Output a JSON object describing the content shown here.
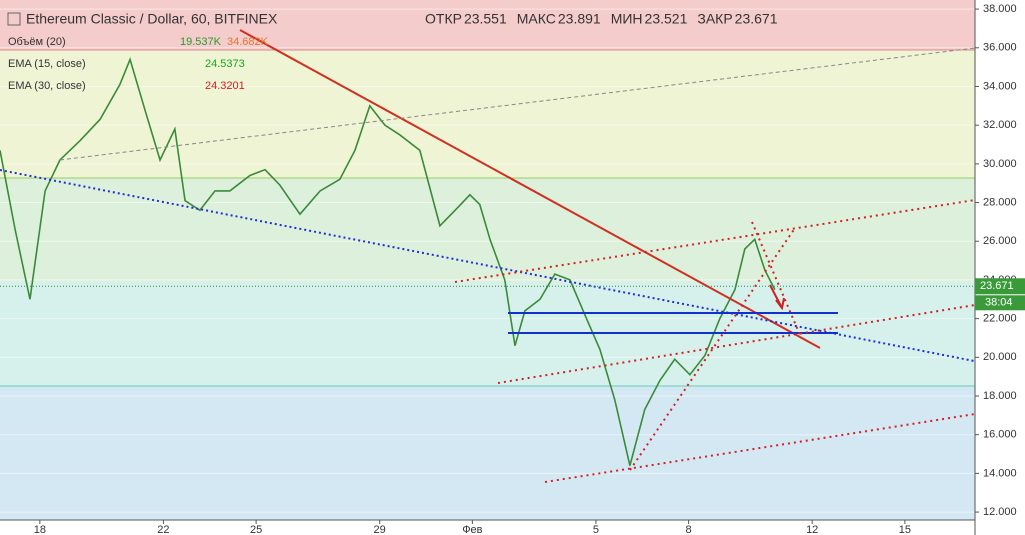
{
  "header": {
    "symbol": "Ethereum Classic / Dollar, 60, BITFINEX",
    "ohlc": [
      {
        "label": "ОТКР",
        "value": 23.551
      },
      {
        "label": "МАКС",
        "value": 23.891
      },
      {
        "label": "МИН",
        "value": 23.521
      },
      {
        "label": "ЗАКР",
        "value": 23.671
      }
    ]
  },
  "indicators": [
    {
      "name": "Объём (20)",
      "values": [
        "19.537K",
        "34.682K"
      ]
    },
    {
      "name": "EMA (15, close)",
      "values": [
        24.5373
      ]
    },
    {
      "name": "EMA (30, close)",
      "values": [
        24.3201
      ]
    }
  ],
  "price_label": {
    "value": 23.671,
    "timer": "38:04"
  },
  "chart_data": {
    "type": "line",
    "x": [
      16.71,
      17.2,
      17.68,
      18.17,
      18.65,
      19.3,
      19.95,
      20.59,
      20.92,
      21.4,
      21.89,
      22.37,
      22.7,
      23.18,
      23.67,
      24.15,
      24.8,
      25.29,
      25.77,
      26.42,
      27.07,
      27.71,
      28.2,
      28.68,
      29.17,
      29.65,
      30.3,
      30.95,
      31.44,
      31.92,
      32.24,
      32.57,
      33.05,
      33.38,
      33.7,
      34.19,
      34.67,
      35.16,
      35.64,
      36.13,
      36.61,
      37.1,
      37.58,
      38.07,
      38.55,
      39.04,
      39.53,
      40.01,
      40.5,
      40.82,
      41.14,
      41.47,
      41.79
    ],
    "series": [
      {
        "name": "Ethereum Classic / Dollar",
        "color": "#3a8a3a",
        "values": [
          30.7,
          26.6,
          23,
          28.6,
          30.2,
          31.2,
          32.3,
          34.1,
          35.4,
          32.8,
          30.2,
          31.8,
          28.1,
          27.6,
          28.6,
          28.6,
          29.4,
          29.7,
          28.9,
          27.4,
          28.6,
          29.2,
          30.7,
          33,
          32,
          31.5,
          30.7,
          26.8,
          27.6,
          28.4,
          27.9,
          26.1,
          24,
          20.6,
          22.4,
          23,
          24.3,
          24,
          22.2,
          20.4,
          17.8,
          14.4,
          17.3,
          18.8,
          19.9,
          19.1,
          20.1,
          22,
          23.5,
          25.6,
          26.1,
          24.5,
          23.5
        ]
      }
    ],
    "xlim": [
      16.71,
      48.27
    ],
    "xticks": [
      18,
      22,
      25,
      29,
      {
        "value": 32,
        "label": "Фев"
      },
      5,
      8,
      12,
      15
    ],
    "ylim": [
      11.59,
      38.47
    ],
    "yticks": [
      {
        "value": 12,
        "label": "12.000"
      },
      {
        "value": 14,
        "label": "14.000"
      },
      {
        "value": 16,
        "label": "16.000"
      },
      {
        "value": 18,
        "label": "18.000"
      },
      {
        "value": 20,
        "label": "20.000"
      },
      {
        "value": 22,
        "label": "22.000"
      },
      {
        "value": 24,
        "label": "24.000"
      },
      {
        "value": 26,
        "label": "26.000"
      },
      {
        "value": 28,
        "label": "28.000"
      },
      {
        "value": 30,
        "label": "30.000"
      },
      {
        "value": 32,
        "label": "32.000"
      },
      {
        "value": 34,
        "label": "34.000"
      },
      {
        "value": 36,
        "label": "36.000"
      },
      {
        "value": 38,
        "label": "38.000"
      }
    ],
    "grid": true
  }
}
